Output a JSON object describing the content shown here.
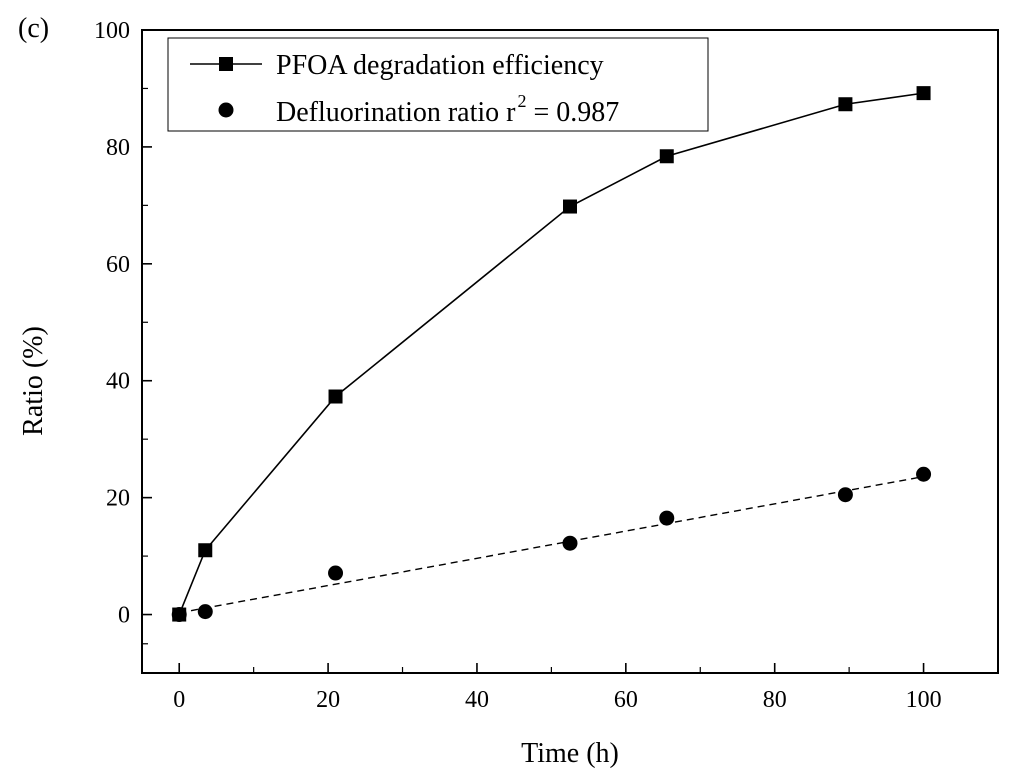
{
  "chart_data": {
    "type": "line",
    "panel_label": "(c)",
    "xlabel": "Time (h)",
    "ylabel": "Ratio (%)",
    "xlim": [
      -5,
      110
    ],
    "ylim": [
      -10,
      100
    ],
    "xticks": [
      0,
      20,
      40,
      60,
      80,
      100
    ],
    "yticks": [
      0,
      20,
      40,
      60,
      80,
      100
    ],
    "legend_position": "top-left",
    "series": [
      {
        "name": "PFOA degradation efficiency",
        "marker": "square",
        "line": "solid",
        "x": [
          0,
          3.5,
          21,
          52.5,
          65.5,
          89.5,
          100
        ],
        "y": [
          0,
          11,
          37.3,
          69.8,
          78.4,
          87.3,
          89.2
        ]
      },
      {
        "name": "Defluorination ratio r",
        "name_superscript": "2",
        "name_suffix": " = 0.987",
        "marker": "circle",
        "line": "none",
        "x": [
          0,
          3.5,
          21,
          52.5,
          65.5,
          89.5,
          100
        ],
        "y": [
          0,
          0.5,
          7.1,
          12.2,
          16.5,
          20.5,
          24
        ]
      }
    ],
    "fit_line": {
      "style": "dashed",
      "x": [
        0,
        100
      ],
      "y": [
        0.3,
        23.6
      ]
    }
  }
}
